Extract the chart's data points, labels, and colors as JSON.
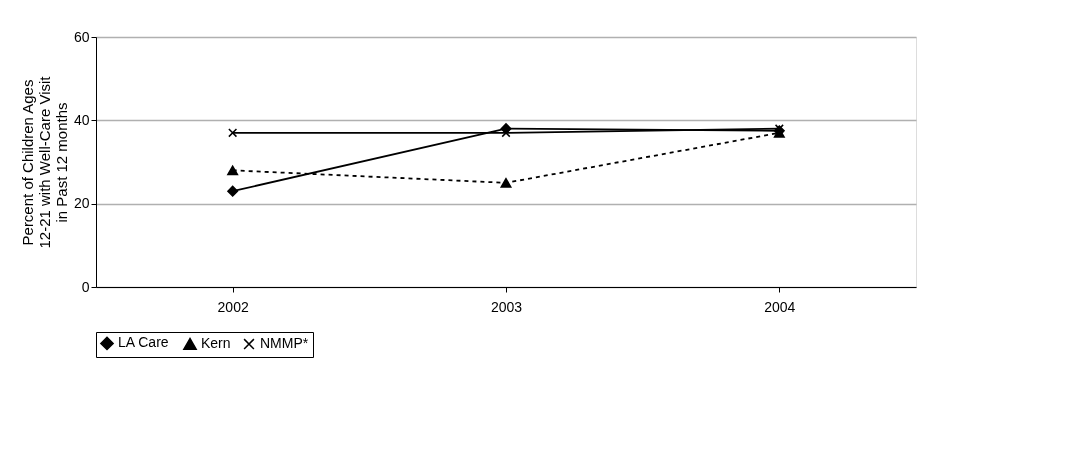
{
  "chart_data": {
    "type": "line",
    "ylabel": "Percent of Children Ages 12-21 with Well-Care Visit in Past 12 months",
    "categories": [
      "2002",
      "2003",
      "2004"
    ],
    "series": [
      {
        "name": "LA Care",
        "color": "#000000",
        "values": [
          23,
          38,
          37.5
        ],
        "marker": "diamond",
        "line_style": "solid"
      },
      {
        "name": "Kern",
        "color": "#000000",
        "values": [
          28,
          25,
          37
        ],
        "marker": "triangle",
        "line_style": "dashed"
      },
      {
        "name": "NMMP*",
        "color": "#000000",
        "values": [
          37,
          37,
          38
        ],
        "marker": "cross",
        "line_style": "solid"
      }
    ],
    "ylim": [
      0,
      60
    ],
    "yticks": [
      0,
      20,
      40,
      60
    ],
    "grid": "y",
    "legend": "bottom"
  }
}
